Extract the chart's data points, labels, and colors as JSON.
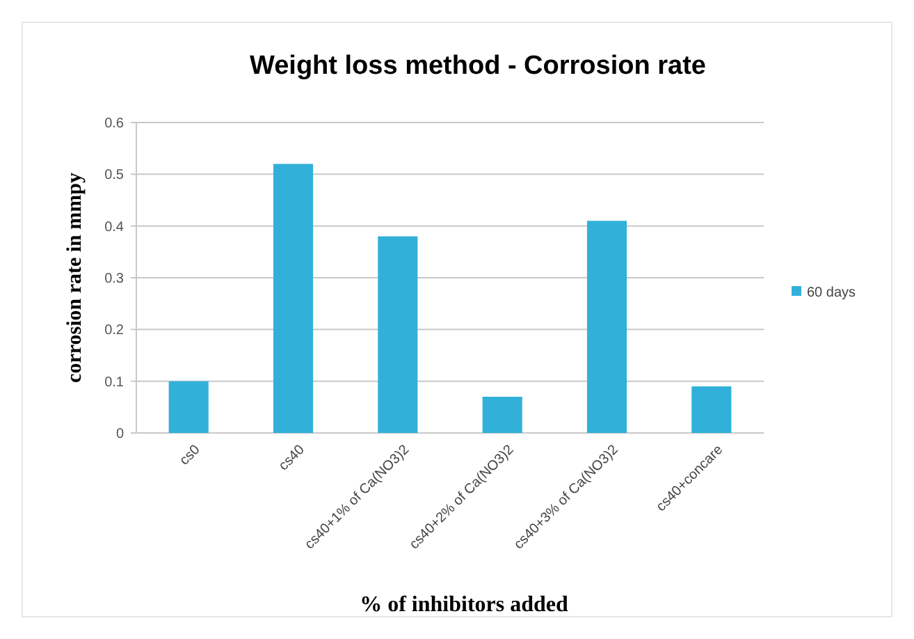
{
  "chart_data": {
    "type": "bar",
    "title": "Weight loss method - Corrosion rate",
    "xlabel": "% of inhibitors added",
    "ylabel": "corrosion rate in mmpy",
    "categories": [
      "cs0",
      "cs40",
      "cs40+1% of Ca(NO3)2",
      "cs40+2% of Ca(NO3)2",
      "cs40+3% of Ca(NO3)2",
      "cs40+concare"
    ],
    "series": [
      {
        "name": "60 days",
        "color": "#31b1d9",
        "values": [
          0.1,
          0.52,
          0.38,
          0.07,
          0.41,
          0.09
        ]
      }
    ],
    "ylim": [
      0,
      0.6
    ],
    "yticks": [
      0,
      0.1,
      0.2,
      0.3,
      0.4,
      0.5,
      0.6
    ],
    "grid": "y",
    "legend": "right"
  }
}
